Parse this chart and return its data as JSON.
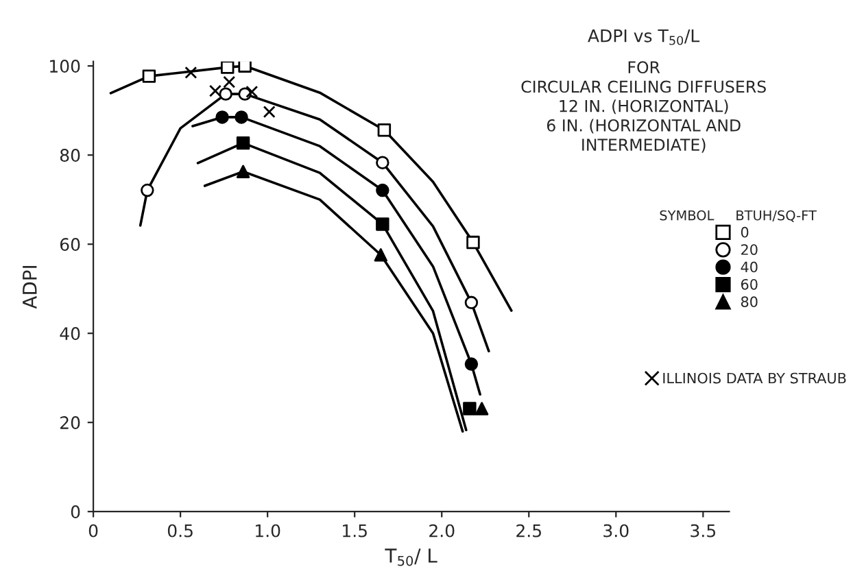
{
  "chart_data": {
    "type": "scatter",
    "title": "ADPI vs T$_{50}$/L",
    "subtitle": "FOR\nCIRCULAR CEILING DIFFUSERS\n12 IN. (HORIZONTAL)\n6 IN. (HORIZONTAL AND\nINTERMEDIATE)",
    "xlabel": "T$_{50}$/ L",
    "ylabel": "ADPI",
    "legend_title": "SYMBOL     BTUH/SQ-FT",
    "legend": "right",
    "series": [
      {
        "name": "0",
        "marker": "square",
        "color": "#ffffff",
        "x": [
          0.32,
          0.77,
          0.87,
          1.67,
          2.18
        ],
        "values": [
          97.7,
          99.7,
          100,
          85.6,
          60.4
        ]
      },
      {
        "name": "20",
        "marker": "circle",
        "color": "#ffffff",
        "x": [
          0.31,
          0.76,
          0.87,
          1.66,
          2.17
        ],
        "values": [
          72.1,
          93.7,
          93.7,
          78.3,
          46.9
        ]
      },
      {
        "name": "40",
        "marker": "circle",
        "color": "#000000",
        "x": [
          0.74,
          0.85,
          1.66,
          2.17
        ],
        "values": [
          88.5,
          88.5,
          72.1,
          33.1
        ]
      },
      {
        "name": "60",
        "marker": "square",
        "color": "#000000",
        "x": [
          0.86,
          1.66,
          2.16
        ],
        "values": [
          82.7,
          64.5,
          23.1
        ]
      },
      {
        "name": "80",
        "marker": "triangle",
        "color": "#000000",
        "x": [
          0.86,
          1.65,
          2.23
        ],
        "values": [
          76.3,
          57.6,
          23.1
        ]
      },
      {
        "name": "ILLINOIS DATA BY STRAUB",
        "marker": "cross",
        "color": "#000000",
        "x": [
          0.56,
          0.7,
          0.78,
          0.91,
          1.01
        ],
        "values": [
          98.5,
          94.4,
          96.4,
          94.2,
          89.7
        ]
      },
      {
        "type": "line",
        "color": "#000000",
        "x": [
          0.1,
          0.32,
          0.77,
          0.87,
          1.3,
          1.67,
          1.95,
          2.18,
          2.4
        ],
        "values": [
          93.9,
          97.7,
          99.7,
          100,
          94,
          85.6,
          74,
          60.4,
          45.1
        ]
      },
      {
        "type": "line",
        "color": "#000000",
        "x": [
          0.27,
          0.31,
          0.5,
          0.76,
          0.87,
          1.3,
          1.66,
          1.95,
          2.17,
          2.27
        ],
        "values": [
          64.2,
          72.1,
          86,
          93.7,
          93.7,
          88,
          78.3,
          64,
          46.9,
          36
        ]
      },
      {
        "type": "line",
        "color": "#000000",
        "x": [
          0.57,
          0.74,
          0.85,
          1.3,
          1.66,
          1.95,
          2.17,
          2.22
        ],
        "values": [
          86.5,
          88.5,
          88.5,
          82,
          72.1,
          55,
          33.1,
          26.3
        ]
      },
      {
        "type": "line",
        "color": "#000000",
        "x": [
          0.6,
          0.86,
          1.3,
          1.66,
          1.95,
          2.14
        ],
        "values": [
          78.2,
          82.7,
          76,
          64.5,
          45,
          18.3
        ]
      },
      {
        "type": "line",
        "color": "#000000",
        "x": [
          0.64,
          0.86,
          1.3,
          1.65,
          1.95,
          2.12
        ],
        "values": [
          73.1,
          76.3,
          70,
          57.6,
          40,
          18
        ]
      }
    ],
    "xlim": [
      0,
      3.65
    ],
    "ylim": [
      0,
      101
    ],
    "xticks": [
      0,
      0.5,
      {
        "value": 1.0,
        "label": "1.0"
      },
      1.5,
      {
        "value": 2.0,
        "label": "2.0"
      },
      2.5,
      {
        "value": 3.0,
        "label": "3.0"
      },
      3.5
    ],
    "yticks": [
      0,
      20,
      40,
      60,
      80,
      100
    ],
    "grid": false,
    "line_style": "solid"
  }
}
